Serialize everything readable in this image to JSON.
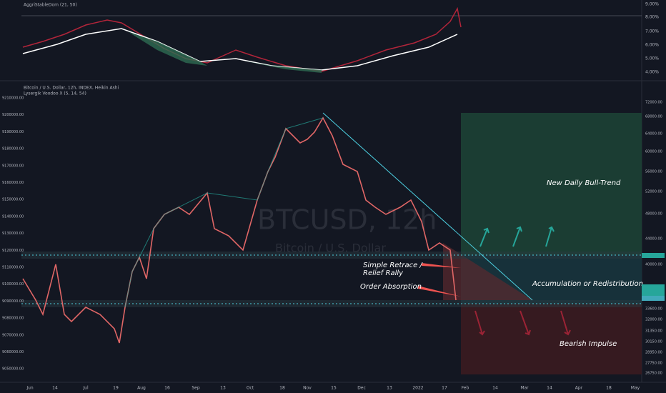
{
  "header": {
    "indicator_top": "AggriStableDom (21, 50)",
    "symbol": "Bitcoin / U.S. Dollar, 12h, INDEX, Heikin Ashi",
    "indicator_main": "Lysergik Voodoo X (5, 14, 54)"
  },
  "watermark": {
    "ticker": "BTCUSD, 12h",
    "name": "Bitcoin / U.S. Dollar"
  },
  "top_axis": [
    "9.00%",
    "8.00%",
    "7.00%",
    "6.00%",
    "5.00%",
    "4.00%"
  ],
  "left_axis": [
    "9210000.00",
    "9200000.00",
    "9190000.00",
    "9180000.00",
    "9170000.00",
    "9160000.00",
    "9150000.00",
    "9140000.00",
    "9130000.00",
    "9120000.00",
    "9110000.00",
    "9100000.00",
    "9090000.00",
    "9080000.00",
    "9070000.00",
    "9060000.00",
    "9050000.00"
  ],
  "right_axis": [
    "72000.00",
    "68000.00",
    "64000.00",
    "60000.00",
    "56000.00",
    "52000.00",
    "48000.00",
    "44000.00",
    "40000.00",
    "33600.00",
    "32000.00",
    "31350.00",
    "30150.00",
    "28950.00",
    "27750.00",
    "26750.00"
  ],
  "x_axis": [
    "Jun",
    "14",
    "Jul",
    "19",
    "Aug",
    "16",
    "Sep",
    "13",
    "Oct",
    "18",
    "Nov",
    "15",
    "Dec",
    "13",
    "2022",
    "17",
    "Feb",
    "14",
    "Mar",
    "14",
    "Apr",
    "18",
    "May"
  ],
  "annotations": {
    "bull": "New Daily Bull-Trend",
    "accum": "Accumulation or Redistribution",
    "retrace_1": "Simple Retrace /",
    "retrace_2": "Relief Rally",
    "absorption": "Order Absorption",
    "bear": "Bearish Impulse"
  }
}
